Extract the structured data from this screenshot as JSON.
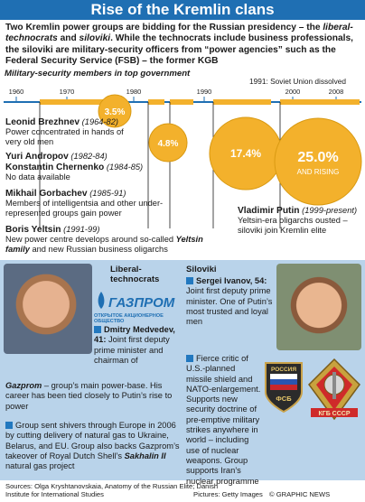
{
  "title": "Rise of the Kremlin clans",
  "intro": {
    "p1": "Two Kremlin power groups are bidding for the Russian presidency – the ",
    "technocrats": "liberal-technocrats",
    "and": " and ",
    "siloviki": "siloviki",
    "p2": ". While the technocrats include business professionals, the siloviki are military-security officers from “power agencies” such as the Federal Security Service (FSB) – the former KGB"
  },
  "timeline": {
    "subhead": "Military-security members in top government",
    "dissolved": "1991: Soviet Union dissolved",
    "ticks": [
      "1960",
      "1970",
      "1980",
      "1990",
      "2000",
      "2008"
    ]
  },
  "chart_data": {
    "type": "bubble",
    "series": [
      {
        "leader": "Leonid Brezhnev",
        "value": 3.5,
        "label": "3.5%"
      },
      {
        "leader": "Mikhail Gorbachev",
        "value": 4.8,
        "label": "4.8%"
      },
      {
        "leader": "Boris Yeltsin",
        "value": 17.4,
        "label": "17.4%"
      },
      {
        "leader": "Vladimir Putin",
        "value": 25.0,
        "label": "25.0%",
        "note": "AND RISING"
      }
    ]
  },
  "leaders": [
    {
      "name": "Leonid Brezhnev",
      "years": "(1964-82)",
      "desc": "Power concentrated in hands of very old men"
    },
    {
      "name": "Yuri Andropov",
      "years": "(1982-84)"
    },
    {
      "name": "Konstantin Chernenko",
      "years": "(1984-85)",
      "desc": "No data available"
    },
    {
      "name": "Mikhail Gorbachev",
      "years": "(1985-91)",
      "desc": "Members of intelligentsia and other under-represented groups gain power"
    },
    {
      "name": "Boris Yeltsin",
      "years": "(1991-99)",
      "desc1": "New power centre develops around so-called ",
      "desc_em": "Yeltsin family",
      "desc2": " and new Russian business oligarchs"
    },
    {
      "name": "Vladimir Putin",
      "years": "(1999-present)",
      "desc": "Yeltsin-era oligarchs ousted – siloviki join Kremlin elite"
    }
  ],
  "left": {
    "group": "Liberal-technocrats",
    "logo": "ГАЗПРОМ",
    "logo_sub": "ОТКРЫТОЕ АКЦИОНЕРНОЕ ОБЩЕСТВО",
    "person": "Dmitry Medvedev, 41:",
    "person_desc": "Joint first deputy prime minister and chairman of ",
    "person_em": "Gazprom",
    "person_desc2": " – group’s main power-base. His career has been tied closely to Putin’s rise to power",
    "bullet2": "Group sent shivers through Europe in 2006 by cutting delivery of natural gas to Ukraine, Belarus, and EU. Group also backs Gazprom’s takeover of Royal Dutch Shell’s ",
    "bullet2_em": "Sakhalin II",
    "bullet2_end": " natural gas project"
  },
  "right": {
    "group": "Siloviki",
    "person": "Sergei Ivanov, 54:",
    "person_desc": "Joint first deputy prime minister. One of Putin’s most trusted and loyal men",
    "bullet2": "Fierce critic of U.S.-planned missile shield and NATO-enlargement. Supports new security doctrine of pre-emptive military strikes anywhere in world – including use of nuclear weapons. Group supports Iran’s nuclear programme",
    "emblem1_top": "РОССИЯ",
    "emblem1_bottom": "ФСБ",
    "emblem2": "КГБ СССР"
  },
  "footer": {
    "sources": "Sources: Olga Kryshtanovskaia, Anatomy of the Russian Elite; Danish Institute for International Studies",
    "pictures": "Pictures: Getty Images",
    "credit": "© GRAPHIC NEWS"
  },
  "colors": {
    "title_bar": "#1f6fb3",
    "bubble": "#f3b12c",
    "bubble_dark": "#d99a12",
    "panel": "#b9d3ea",
    "accent": "#2278bf"
  }
}
